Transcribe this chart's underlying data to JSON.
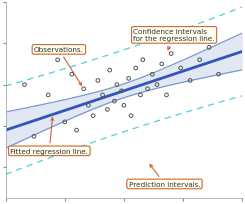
{
  "background_color": "#ffffff",
  "plot_bg_color": "#ffffff",
  "scatter_color": "#555555",
  "regression_color": "#3355bb",
  "ci_color": "#7799cc",
  "ci_fill_color": "#aabbdd",
  "pi_color": "#55ccdd",
  "scatter_x": [
    0.08,
    0.12,
    0.18,
    0.22,
    0.25,
    0.28,
    0.3,
    0.33,
    0.35,
    0.37,
    0.39,
    0.41,
    0.43,
    0.44,
    0.46,
    0.47,
    0.49,
    0.5,
    0.52,
    0.53,
    0.55,
    0.57,
    0.58,
    0.6,
    0.62,
    0.64,
    0.66,
    0.68,
    0.7,
    0.74,
    0.78,
    0.82,
    0.86,
    0.9
  ],
  "scatter_y": [
    0.6,
    0.35,
    0.55,
    0.72,
    0.42,
    0.65,
    0.38,
    0.58,
    0.5,
    0.45,
    0.62,
    0.55,
    0.48,
    0.67,
    0.52,
    0.6,
    0.57,
    0.5,
    0.63,
    0.45,
    0.68,
    0.55,
    0.72,
    0.58,
    0.65,
    0.6,
    0.7,
    0.55,
    0.75,
    0.68,
    0.62,
    0.72,
    0.78,
    0.65
  ],
  "xlim": [
    0.0,
    1.0
  ],
  "ylim": [
    0.05,
    1.0
  ],
  "reg_slope": 0.38,
  "reg_intercept": 0.38,
  "annotation_obs": "Observations.",
  "annotation_ci": "Confidence intervals\nfor the regression line.",
  "annotation_fit": "Fitted regression line.",
  "annotation_pi": "Prediction intervals.",
  "ann_bbox_face": "#fffff0",
  "ann_bbox_edge": "#cc6633",
  "ann_text_color": "#333333"
}
